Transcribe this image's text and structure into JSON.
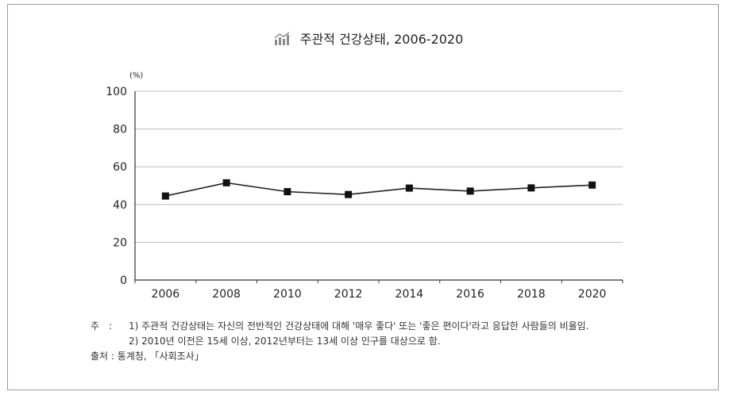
{
  "colors": {
    "line": "#222222",
    "marker": "#111111",
    "grid": "#bdbdbd",
    "axis": "#333333",
    "icon": "#8a8a8a"
  },
  "icon": "bar-chart-icon",
  "chart_data": {
    "type": "line",
    "title": "주관적 건강상태, 2006-2020",
    "unit_label": "(%)",
    "xlabel": "",
    "ylabel": "",
    "categories": [
      "2006",
      "2008",
      "2010",
      "2012",
      "2014",
      "2016",
      "2018",
      "2020"
    ],
    "series": [
      {
        "values": [
          44.5,
          51.5,
          46.8,
          45.3,
          48.7,
          47.1,
          48.8,
          50.3
        ]
      }
    ],
    "ylim": [
      0,
      100
    ],
    "yticks": [
      0,
      20,
      40,
      60,
      80,
      100
    ],
    "grid": true,
    "legend": "none"
  },
  "notes": {
    "note_label": "주　:",
    "note1": "1) 주관적 건강상태는 자신의 전반적인 건강상태에 대해 '매우 좋다' 또는 '좋은 편이다'라고 응답한 사람들의 비율임.",
    "note2": "2) 2010년 이전은 15세 이상, 2012년부터는 13세 이상 인구를 대상으로 함.",
    "source_label": "출처 :",
    "source": "통계청, 「사회조사」"
  }
}
